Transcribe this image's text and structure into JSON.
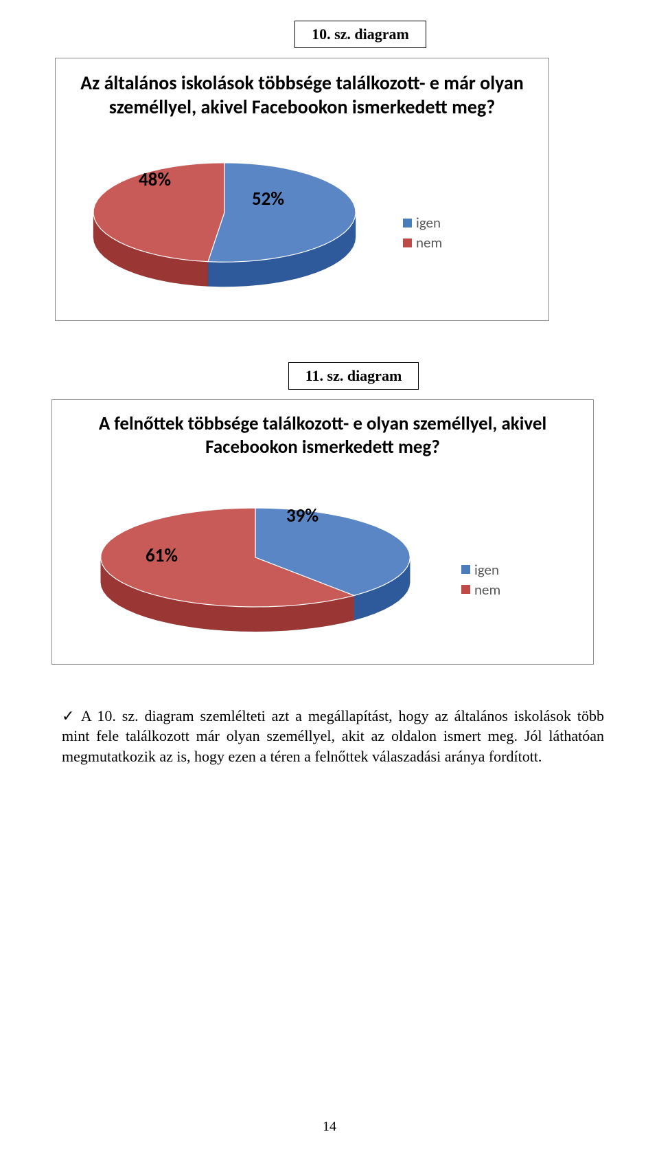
{
  "page_number": "14",
  "body_paragraph_prefix": "✓",
  "body_paragraph": "A 10. sz. diagram szemlélteti azt a megállapítást, hogy az általános iskolások több mint fele találkozott már olyan személlyel, akit az oldalon ismert meg. Jól láthatóan megmutatkozik az is, hogy ezen a téren a felnőttek válaszadási aránya fordított.",
  "chart1": {
    "caption": "10. sz. diagram",
    "type": "pie",
    "title": "Az általános iskolások többsége találkozott- e már olyan személlyel, akivel Facebookon ismerkedett meg?",
    "title_fontsize": 28,
    "slices": [
      {
        "label": "igen",
        "value": 52,
        "display": "52%",
        "color_top": "#5a86c5",
        "color_side": "#2e5a9b"
      },
      {
        "label": "nem",
        "value": 48,
        "display": "48%",
        "color_top": "#c85a58",
        "color_side": "#9a3634"
      }
    ],
    "label_fontsize": 27,
    "legend_items": [
      {
        "text": "igen",
        "color": "#4a7ebb"
      },
      {
        "text": "nem",
        "color": "#be4b48"
      }
    ],
    "pie_width": 390,
    "pie_height": 170,
    "pie_depth": 36
  },
  "chart2": {
    "caption": "11. sz. diagram",
    "type": "pie",
    "title": "A felnőttek többsége találkozott- e olyan személlyel, akivel Facebookon ismerkedett meg?",
    "title_fontsize": 27,
    "slices": [
      {
        "label": "igen",
        "value": 39,
        "display": "39%",
        "color_top": "#5a86c5",
        "color_side": "#2e5a9b"
      },
      {
        "label": "nem",
        "value": 61,
        "display": "61%",
        "color_top": "#c85a58",
        "color_side": "#9a3634"
      }
    ],
    "label_fontsize": 27,
    "legend_items": [
      {
        "text": "igen",
        "color": "#4a7ebb"
      },
      {
        "text": "nem",
        "color": "#be4b48"
      }
    ],
    "pie_width": 460,
    "pie_height": 180,
    "pie_depth": 36
  }
}
